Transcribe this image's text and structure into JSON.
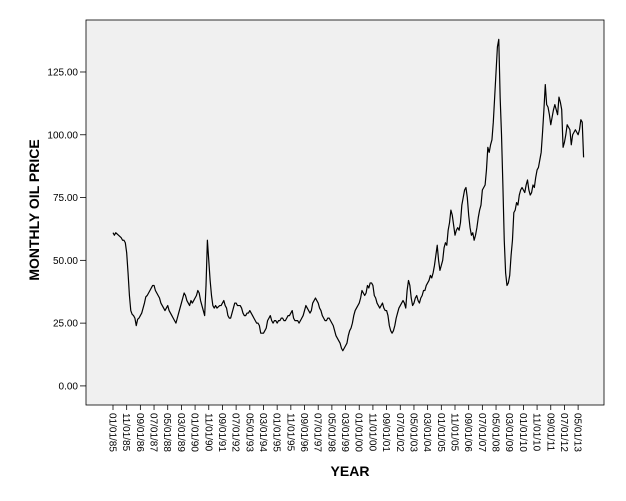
{
  "chart_data": {
    "type": "line",
    "x_label": "YEAR",
    "y_label": "MONTHLY OIL PRICE",
    "color": "#000000",
    "categories": [
      "01/01/85",
      null,
      null,
      null,
      null,
      null,
      null,
      null,
      null,
      null,
      "11/01/85",
      null,
      null,
      null,
      null,
      null,
      null,
      null,
      null,
      null,
      "09/01/86",
      null,
      null,
      null,
      null,
      null,
      null,
      null,
      null,
      null,
      "07/01/87",
      null,
      null,
      null,
      null,
      null,
      null,
      null,
      null,
      null,
      "05/01/88",
      null,
      null,
      null,
      null,
      null,
      null,
      null,
      null,
      null,
      "03/01/89",
      null,
      null,
      null,
      null,
      null,
      null,
      null,
      null,
      null,
      "01/01/90",
      null,
      null,
      null,
      null,
      null,
      null,
      null,
      null,
      null,
      "11/01/90",
      null,
      null,
      null,
      null,
      null,
      null,
      null,
      null,
      null,
      "09/01/91",
      null,
      null,
      null,
      null,
      null,
      null,
      null,
      null,
      null,
      "07/01/92",
      null,
      null,
      null,
      null,
      null,
      null,
      null,
      null,
      null,
      "05/01/93",
      null,
      null,
      null,
      null,
      null,
      null,
      null,
      null,
      null,
      "03/01/94",
      null,
      null,
      null,
      null,
      null,
      null,
      null,
      null,
      null,
      "01/01/95",
      null,
      null,
      null,
      null,
      null,
      null,
      null,
      null,
      null,
      "11/01/95",
      null,
      null,
      null,
      null,
      null,
      null,
      null,
      null,
      null,
      "09/01/96",
      null,
      null,
      null,
      null,
      null,
      null,
      null,
      null,
      null,
      "07/01/97",
      null,
      null,
      null,
      null,
      null,
      null,
      null,
      null,
      null,
      "05/01/98",
      null,
      null,
      null,
      null,
      null,
      null,
      null,
      null,
      null,
      "03/01/99",
      null,
      null,
      null,
      null,
      null,
      null,
      null,
      null,
      null,
      "01/01/00",
      null,
      null,
      null,
      null,
      null,
      null,
      null,
      null,
      null,
      "11/01/00",
      null,
      null,
      null,
      null,
      null,
      null,
      null,
      null,
      null,
      "09/01/01",
      null,
      null,
      null,
      null,
      null,
      null,
      null,
      null,
      null,
      "07/01/02",
      null,
      null,
      null,
      null,
      null,
      null,
      null,
      null,
      null,
      "05/01/03",
      null,
      null,
      null,
      null,
      null,
      null,
      null,
      null,
      null,
      "03/01/04",
      null,
      null,
      null,
      null,
      null,
      null,
      null,
      null,
      null,
      "01/01/05",
      null,
      null,
      null,
      null,
      null,
      null,
      null,
      null,
      null,
      "11/01/05",
      null,
      null,
      null,
      null,
      null,
      null,
      null,
      null,
      null,
      "09/01/06",
      null,
      null,
      null,
      null,
      null,
      null,
      null,
      null,
      null,
      "07/01/07",
      null,
      null,
      null,
      null,
      null,
      null,
      null,
      null,
      null,
      "05/01/08",
      null,
      null,
      null,
      null,
      null,
      null,
      null,
      null,
      null,
      "03/01/09",
      null,
      null,
      null,
      null,
      null,
      null,
      null,
      null,
      null,
      "01/01/10",
      null,
      null,
      null,
      null,
      null,
      null,
      null,
      null,
      null,
      "11/01/10",
      null,
      null,
      null,
      null,
      null,
      null,
      null,
      null,
      null,
      "09/01/11",
      null,
      null,
      null,
      null,
      null,
      null,
      null,
      null,
      null,
      "07/01/12",
      null,
      null,
      null,
      null,
      null,
      null,
      null,
      null,
      null,
      "05/01/13",
      null,
      null,
      null,
      null
    ],
    "values": [
      61,
      60,
      61,
      60.5,
      60,
      59.5,
      59,
      58,
      58,
      57,
      53,
      45,
      36,
      30,
      28.5,
      28,
      27,
      24,
      26.5,
      27,
      28,
      29,
      31,
      33,
      35.5,
      36,
      37,
      38,
      39,
      40,
      40,
      38,
      37,
      36,
      35,
      33,
      32,
      31,
      30,
      31,
      32,
      30,
      29,
      28,
      27,
      26,
      25,
      27,
      29,
      31,
      33,
      35,
      37,
      36,
      34,
      33,
      32,
      34,
      33,
      34,
      35,
      36,
      38,
      37,
      34,
      32,
      30,
      28,
      40,
      58,
      50,
      42,
      36,
      32,
      31,
      32,
      31,
      31.5,
      32,
      32,
      33,
      34,
      32,
      31,
      28,
      27,
      27,
      29,
      31,
      33,
      33,
      32,
      32,
      32,
      31,
      29,
      28,
      28,
      29,
      29,
      30,
      29,
      28,
      27,
      26,
      25,
      25,
      24,
      21,
      21,
      21,
      22,
      23,
      26,
      27,
      28,
      26,
      25,
      26,
      26,
      25,
      26,
      26,
      27,
      27,
      26,
      26,
      27,
      28,
      28,
      29,
      30,
      27,
      26,
      26,
      26,
      25,
      26,
      27,
      28,
      30,
      32,
      31,
      30,
      29,
      30,
      33,
      34,
      35,
      34,
      33,
      31,
      30,
      28,
      27,
      26,
      26,
      27,
      27,
      26,
      25,
      24,
      22,
      20,
      19,
      18,
      17,
      15,
      14,
      15,
      16,
      17,
      20,
      22,
      23,
      25,
      28,
      30,
      31,
      32,
      33,
      35,
      38,
      37,
      36,
      37,
      40,
      39,
      41,
      41,
      40,
      36,
      35,
      33,
      32,
      31,
      32,
      33,
      31,
      30,
      30,
      28,
      24,
      22,
      21,
      22,
      24,
      27,
      29,
      31,
      32,
      33,
      34,
      33,
      31,
      38,
      42,
      40,
      35,
      32,
      33,
      35,
      36,
      34,
      33,
      35,
      36,
      38,
      38,
      40,
      41,
      42,
      44,
      43,
      45,
      48,
      52,
      56,
      50,
      46,
      48,
      50,
      55,
      57,
      56,
      62,
      65,
      70,
      68,
      64,
      60,
      62,
      63,
      62,
      65,
      72,
      75,
      78,
      79,
      75,
      68,
      63,
      60,
      61,
      58,
      60,
      63,
      67,
      70,
      72,
      78,
      79,
      80,
      86,
      95,
      93,
      96,
      98,
      105,
      115,
      125,
      135,
      138,
      115,
      100,
      80,
      58,
      45,
      40,
      41,
      44,
      52,
      58,
      69,
      70,
      73,
      72,
      76,
      78,
      79,
      78,
      77,
      80,
      82,
      78,
      76,
      77,
      80,
      79,
      83,
      86,
      87,
      90,
      93,
      101,
      110,
      120,
      112,
      111,
      108,
      104,
      107,
      110,
      112,
      110,
      108,
      115,
      113,
      110,
      95,
      97,
      100,
      104,
      103,
      102,
      96,
      100,
      101,
      102,
      101,
      100,
      102,
      106,
      105,
      91
    ],
    "ylim": [
      -7.6,
      145.7
    ],
    "yticks": [
      {
        "value": 0,
        "label": "0.00"
      },
      {
        "value": 25,
        "label": "25.00"
      },
      {
        "value": 50,
        "label": "50.00"
      },
      {
        "value": 75,
        "label": "75.00"
      },
      {
        "value": 100,
        "label": "100.00"
      },
      {
        "value": 125,
        "label": "125.00"
      }
    ]
  }
}
